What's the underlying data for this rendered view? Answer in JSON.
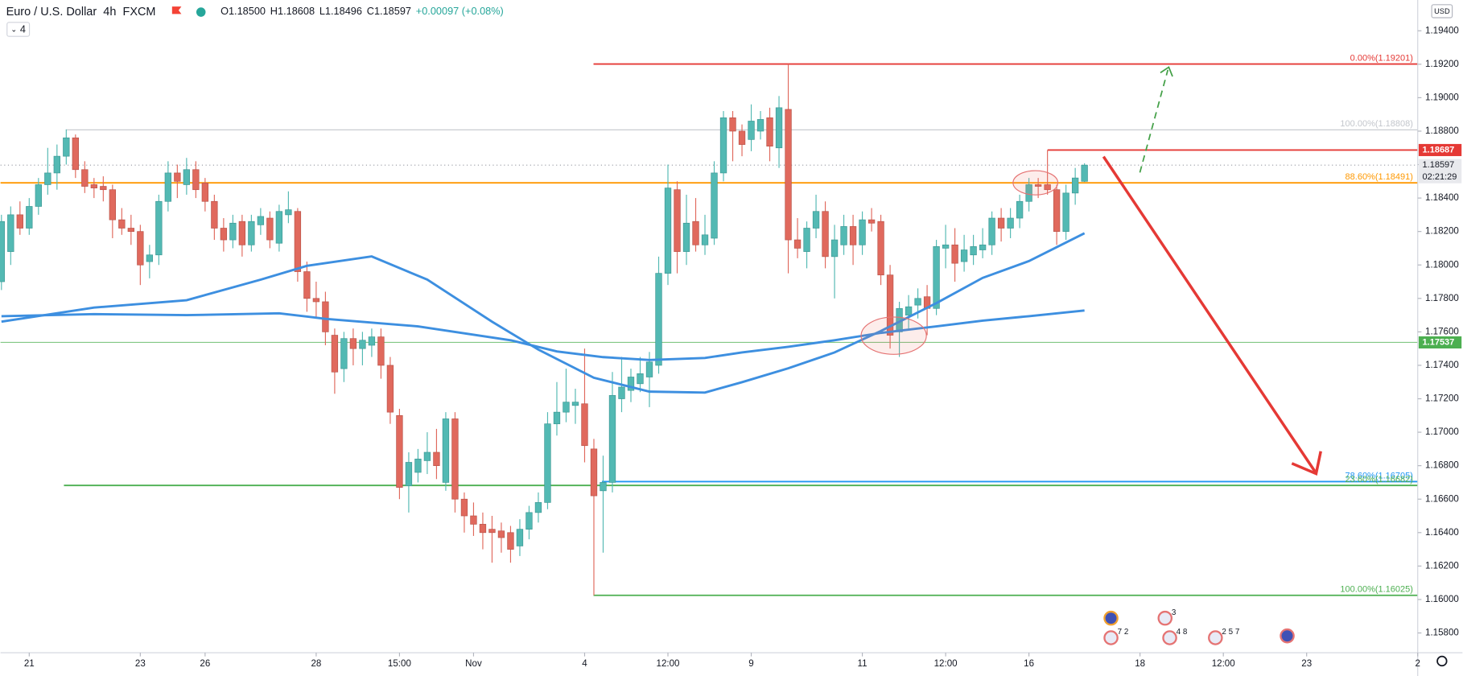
{
  "chart_data": {
    "type": "candlestick",
    "symbol": "Euro / U.S. Dollar",
    "interval": "4h",
    "source": "FXCM",
    "ohlc_text": [
      "O1.18500",
      "H1.18608",
      "L1.18496",
      "C1.18597",
      "+0.00097 (+0.08%)"
    ],
    "indicator_count": "4",
    "currency": "USD",
    "up_color": "#53b9b3",
    "down_color": "#e0695d",
    "open": [
      1.179,
      1.1808,
      1.183,
      1.1822,
      1.1835,
      1.1848,
      1.1855,
      1.1865,
      1.1876,
      1.1857,
      1.1848,
      1.1847,
      1.1845,
      1.1827,
      1.1822,
      1.182,
      1.1802,
      1.1806,
      1.1838,
      1.1855,
      1.1848,
      1.1857,
      1.1849,
      1.1838,
      1.1822,
      1.1815,
      1.1826,
      1.1812,
      1.1824,
      1.1828,
      1.1813,
      1.183,
      1.1832,
      1.1796,
      1.178,
      1.1778,
      1.1758,
      1.1738,
      1.1756,
      1.175,
      1.1752,
      1.1757,
      1.174,
      1.171,
      1.1668,
      1.1676,
      1.1683,
      1.1688,
      1.167,
      1.1708,
      1.166,
      1.165,
      1.1645,
      1.1642,
      1.1641,
      1.164,
      1.1632,
      1.1642,
      1.1652,
      1.1658,
      1.1705,
      1.1712,
      1.1716,
      1.1717,
      1.169,
      1.1665,
      1.167,
      1.172,
      1.1725,
      1.1729,
      1.1733,
      1.174,
      1.1795,
      1.1845,
      1.1808,
      1.1826,
      1.1812,
      1.1816,
      1.1855,
      1.1888,
      1.188,
      1.1875,
      1.188,
      1.1888,
      1.187,
      1.1893,
      1.1815,
      1.1808,
      1.1822,
      1.1832,
      1.1805,
      1.1812,
      1.1823,
      1.1812,
      1.1827,
      1.1826,
      1.1794,
      1.176,
      1.177,
      1.1776,
      1.1781,
      1.1774,
      1.181,
      1.1812,
      1.1802,
      1.1806,
      1.1809,
      1.1812,
      1.1828,
      1.1822,
      1.1828,
      1.1838,
      1.1848,
      1.1848,
      1.1845,
      1.182,
      1.1843,
      1.185
    ],
    "high": [
      1.183,
      1.1835,
      1.1838,
      1.184,
      1.1852,
      1.187,
      1.1872,
      1.1881,
      1.1878,
      1.1862,
      1.1852,
      1.1853,
      1.1848,
      1.1834,
      1.183,
      1.1824,
      1.1812,
      1.1842,
      1.1862,
      1.186,
      1.1864,
      1.1862,
      1.1852,
      1.1842,
      1.1828,
      1.183,
      1.183,
      1.183,
      1.1834,
      1.1832,
      1.1836,
      1.1844,
      1.1834,
      1.1802,
      1.179,
      1.1784,
      1.1762,
      1.176,
      1.1762,
      1.176,
      1.1762,
      1.1762,
      1.1745,
      1.1714,
      1.1688,
      1.169,
      1.17,
      1.1702,
      1.1712,
      1.1712,
      1.1664,
      1.1658,
      1.1652,
      1.165,
      1.1646,
      1.1644,
      1.1648,
      1.1656,
      1.1664,
      1.1712,
      1.173,
      1.1738,
      1.1726,
      1.175,
      1.1696,
      1.1686,
      1.1736,
      1.1745,
      1.1738,
      1.1745,
      1.1748,
      1.1805,
      1.186,
      1.185,
      1.1842,
      1.184,
      1.183,
      1.1862,
      1.1892,
      1.1892,
      1.1884,
      1.1896,
      1.1892,
      1.1894,
      1.1901,
      1.19201,
      1.1828,
      1.1826,
      1.1842,
      1.1838,
      1.1824,
      1.183,
      1.183,
      1.1832,
      1.1834,
      1.183,
      1.18,
      1.1778,
      1.1782,
      1.1786,
      1.1788,
      1.1815,
      1.1824,
      1.1822,
      1.1818,
      1.1818,
      1.1822,
      1.1832,
      1.1834,
      1.1834,
      1.1842,
      1.1852,
      1.1852,
      1.18687,
      1.1848,
      1.1848,
      1.1858,
      1.18608
    ],
    "low": [
      1.1785,
      1.18,
      1.1818,
      1.1818,
      1.183,
      1.1842,
      1.1845,
      1.186,
      1.1852,
      1.1843,
      1.184,
      1.1838,
      1.1816,
      1.1818,
      1.1812,
      1.1788,
      1.1792,
      1.18,
      1.1832,
      1.184,
      1.1842,
      1.184,
      1.1832,
      1.1815,
      1.1808,
      1.181,
      1.1805,
      1.1808,
      1.1818,
      1.181,
      1.1808,
      1.1825,
      1.179,
      1.1772,
      1.1768,
      1.1752,
      1.1723,
      1.173,
      1.174,
      1.174,
      1.1745,
      1.1732,
      1.1705,
      1.166,
      1.1652,
      1.167,
      1.1675,
      1.1672,
      1.1665,
      1.1652,
      1.164,
      1.1638,
      1.163,
      1.1622,
      1.1628,
      1.1622,
      1.1626,
      1.1636,
      1.1646,
      1.1654,
      1.1698,
      1.1706,
      1.1705,
      1.1682,
      1.16025,
      1.1628,
      1.1664,
      1.1712,
      1.1718,
      1.1724,
      1.1715,
      1.1735,
      1.1788,
      1.1795,
      1.18,
      1.1808,
      1.1806,
      1.1812,
      1.185,
      1.1862,
      1.1865,
      1.1868,
      1.1875,
      1.1862,
      1.1858,
      1.1795,
      1.1804,
      1.1798,
      1.1816,
      1.1798,
      1.178,
      1.1806,
      1.18,
      1.1806,
      1.182,
      1.1788,
      1.175,
      1.1745,
      1.1762,
      1.1768,
      1.1758,
      1.177,
      1.1798,
      1.179,
      1.1796,
      1.18,
      1.1804,
      1.1806,
      1.1814,
      1.1816,
      1.1822,
      1.1832,
      1.184,
      1.1842,
      1.1812,
      1.1815,
      1.1836,
      1.18496
    ],
    "close": [
      1.1826,
      1.183,
      1.1822,
      1.1835,
      1.1848,
      1.1855,
      1.1865,
      1.1876,
      1.1857,
      1.1847,
      1.1846,
      1.1845,
      1.1827,
      1.1822,
      1.182,
      1.18,
      1.1806,
      1.1838,
      1.1855,
      1.185,
      1.1857,
      1.1845,
      1.1838,
      1.1822,
      1.1815,
      1.1825,
      1.1812,
      1.1826,
      1.1829,
      1.1815,
      1.1832,
      1.1833,
      1.1796,
      1.178,
      1.1778,
      1.176,
      1.1736,
      1.1756,
      1.175,
      1.1755,
      1.1757,
      1.174,
      1.1712,
      1.1667,
      1.1682,
      1.1684,
      1.1688,
      1.168,
      1.1708,
      1.166,
      1.165,
      1.1645,
      1.164,
      1.164,
      1.1637,
      1.163,
      1.1642,
      1.1652,
      1.1658,
      1.1705,
      1.1712,
      1.1718,
      1.1718,
      1.1692,
      1.1662,
      1.167,
      1.1722,
      1.1727,
      1.1733,
      1.1735,
      1.1742,
      1.1795,
      1.1846,
      1.1808,
      1.1825,
      1.1812,
      1.1818,
      1.1855,
      1.1888,
      1.188,
      1.1872,
      1.1886,
      1.1887,
      1.1871,
      1.1894,
      1.1815,
      1.181,
      1.1822,
      1.1832,
      1.1805,
      1.1815,
      1.1823,
      1.1812,
      1.1827,
      1.1825,
      1.1794,
      1.1758,
      1.1774,
      1.1775,
      1.178,
      1.1774,
      1.1811,
      1.1812,
      1.1801,
      1.1809,
      1.1811,
      1.1812,
      1.1828,
      1.1822,
      1.1828,
      1.1838,
      1.1848,
      1.1847,
      1.1845,
      1.182,
      1.1843,
      1.1852,
      1.18597
    ],
    "moving_averages": [
      {
        "color": "#3d8fe0",
        "x": [
          0,
          10,
          20,
          28,
          33,
          40,
          46,
          53,
          58,
          64,
          70,
          76,
          80,
          85,
          90,
          95,
          101,
          106,
          111,
          117
        ],
        "values": [
          1.17661,
          1.17745,
          1.17789,
          1.17912,
          1.17995,
          1.18051,
          1.17912,
          1.17661,
          1.17494,
          1.17326,
          1.17243,
          1.17237,
          1.17299,
          1.17382,
          1.17477,
          1.17605,
          1.17772,
          1.17923,
          1.18023,
          1.1819
        ]
      },
      {
        "color": "#3d8fe0",
        "x": [
          0,
          10,
          20,
          30,
          35,
          45,
          55,
          60,
          65,
          70,
          76,
          80,
          85,
          90,
          95,
          101,
          106,
          111,
          117
        ],
        "values": [
          1.17694,
          1.17706,
          1.177,
          1.17711,
          1.17678,
          1.17633,
          1.1755,
          1.17483,
          1.17449,
          1.17432,
          1.17444,
          1.17477,
          1.17511,
          1.1755,
          1.17594,
          1.17633,
          1.17667,
          1.17694,
          1.17728
        ]
      }
    ],
    "levels": [
      {
        "value": 1.19201,
        "label": "0.00%(1.19201)",
        "color": "#e53935"
      },
      {
        "value": 1.18808,
        "label": "100.00%(1.18808)",
        "color": "#c3c6cc"
      },
      {
        "value": 1.18687,
        "color": "#e53935"
      },
      {
        "value": 1.18491,
        "label": "88.60%(1.18491)",
        "color": "#ff9800"
      },
      {
        "value": 1.17537,
        "color": "#81c784"
      },
      {
        "value": 1.16705,
        "label": "78.60%(1.16705)",
        "color": "#2196f3"
      },
      {
        "value": 1.16682,
        "label": "23.60%(1.16682)",
        "color": "#4caf50"
      },
      {
        "value": 1.16025,
        "label": "100.00%(1.16025)",
        "color": "#4caf50"
      }
    ],
    "last_price": 1.18597,
    "countdown": "02:21:29",
    "events": [
      "3",
      "7 2",
      "4 8",
      "2 5 7"
    ],
    "xlim": [
      0,
      153
    ],
    "ylim": [
      1.15682,
      1.19584
    ],
    "xticks": [
      {
        "value": 3,
        "label": "21"
      },
      {
        "value": 15,
        "label": "23"
      },
      {
        "value": 22,
        "label": "26"
      },
      {
        "value": 34,
        "label": "28"
      },
      {
        "value": 43,
        "label": "15:00"
      },
      {
        "value": 51,
        "label": "Nov"
      },
      {
        "value": 63,
        "label": "4"
      },
      {
        "value": 72,
        "label": "12:00"
      },
      {
        "value": 81,
        "label": "9"
      },
      {
        "value": 93,
        "label": "11"
      },
      {
        "value": 102,
        "label": "12:00"
      },
      {
        "value": 111,
        "label": "16"
      },
      {
        "value": 123,
        "label": "18"
      },
      {
        "value": 132,
        "label": "12:00"
      },
      {
        "value": 141,
        "label": "23"
      },
      {
        "value": 153,
        "label": "2"
      }
    ],
    "yticks": [
      {
        "value": 1.194,
        "label": "1.19400"
      },
      {
        "value": 1.192,
        "label": "1.19200"
      },
      {
        "value": 1.19,
        "label": "1.19000"
      },
      {
        "value": 1.188,
        "label": "1.18800"
      },
      {
        "value": 1.186,
        "label": "1.18600"
      },
      {
        "value": 1.184,
        "label": "1.18400"
      },
      {
        "value": 1.182,
        "label": "1.18200"
      },
      {
        "value": 1.18,
        "label": "1.18000"
      },
      {
        "value": 1.178,
        "label": "1.17800"
      },
      {
        "value": 1.176,
        "label": "1.17600"
      },
      {
        "value": 1.174,
        "label": "1.17400"
      },
      {
        "value": 1.172,
        "label": "1.17200"
      },
      {
        "value": 1.17,
        "label": "1.17000"
      },
      {
        "value": 1.168,
        "label": "1.16800"
      },
      {
        "value": 1.166,
        "label": "1.16600"
      },
      {
        "value": 1.164,
        "label": "1.16400"
      },
      {
        "value": 1.162,
        "label": "1.16200"
      },
      {
        "value": 1.16,
        "label": "1.16000"
      },
      {
        "value": 1.158,
        "label": "1.15800"
      }
    ]
  }
}
